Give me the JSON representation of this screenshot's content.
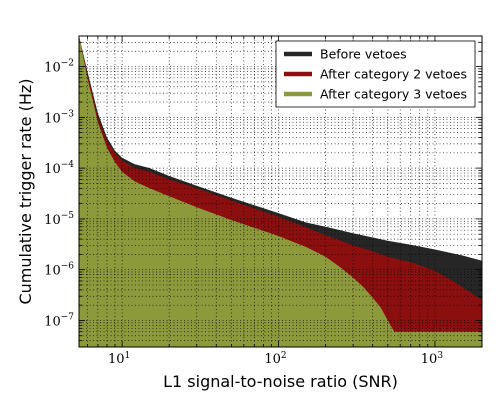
{
  "chart_data": {
    "type": "area",
    "xlabel": "L1 signal-to-noise ratio (SNR)",
    "ylabel": "Cumulative trigger rate (Hz)",
    "xscale": "log",
    "yscale": "log",
    "xlim": [
      5.3,
      2000
    ],
    "ylim": [
      3e-08,
      0.04
    ],
    "x_ticks": [
      {
        "value": 10,
        "label": "10",
        "exp": "1"
      },
      {
        "value": 100,
        "label": "10",
        "exp": "2"
      },
      {
        "value": 1000,
        "label": "10",
        "exp": "3"
      }
    ],
    "y_ticks": [
      {
        "value": 1e-07,
        "label": "10",
        "exp": "−7"
      },
      {
        "value": 1e-06,
        "label": "10",
        "exp": "−6"
      },
      {
        "value": 1e-05,
        "label": "10",
        "exp": "−5"
      },
      {
        "value": 0.0001,
        "label": "10",
        "exp": "−4"
      },
      {
        "value": 0.001,
        "label": "10",
        "exp": "−3"
      },
      {
        "value": 0.01,
        "label": "10",
        "exp": "−2"
      }
    ],
    "grid": true,
    "legend_position": "top-right",
    "series": [
      {
        "name": "Before vetoes",
        "color": "#262626",
        "points": [
          [
            5.3,
            0.04
          ],
          [
            6,
            0.008
          ],
          [
            7,
            0.0012
          ],
          [
            8,
            0.0004
          ],
          [
            9,
            0.00022
          ],
          [
            10,
            0.00016
          ],
          [
            12,
            0.00012
          ],
          [
            15,
            0.0001
          ],
          [
            20,
            7e-05
          ],
          [
            30,
            4.5e-05
          ],
          [
            50,
            2.6e-05
          ],
          [
            100,
            1.3e-05
          ],
          [
            150,
            8.5e-06
          ],
          [
            200,
            7e-06
          ],
          [
            300,
            5.2e-06
          ],
          [
            500,
            3.7e-06
          ],
          [
            700,
            3.1e-06
          ],
          [
            1000,
            2.5e-06
          ],
          [
            1500,
            1.9e-06
          ],
          [
            2000,
            1.5e-06
          ]
        ]
      },
      {
        "name": "After category 2 vetoes",
        "color": "#8c0f0f",
        "points": [
          [
            5.3,
            0.04
          ],
          [
            6,
            0.007
          ],
          [
            7,
            0.001
          ],
          [
            8,
            0.00035
          ],
          [
            9,
            0.0002
          ],
          [
            10,
            0.00014
          ],
          [
            12,
            0.0001
          ],
          [
            15,
            8.5e-05
          ],
          [
            20,
            6e-05
          ],
          [
            30,
            4e-05
          ],
          [
            50,
            2.3e-05
          ],
          [
            100,
            1.1e-05
          ],
          [
            150,
            6.8e-06
          ],
          [
            200,
            4.8e-06
          ],
          [
            300,
            3e-06
          ],
          [
            400,
            2.3e-06
          ],
          [
            500,
            1.8e-06
          ],
          [
            700,
            1.4e-06
          ],
          [
            1000,
            9.5e-07
          ],
          [
            1300,
            6e-07
          ],
          [
            1700,
            3.5e-07
          ],
          [
            2000,
            2.5e-07
          ]
        ]
      },
      {
        "name": "After category 3 vetoes",
        "color": "#8c9a3c",
        "points": [
          [
            5.3,
            0.04
          ],
          [
            6,
            0.006
          ],
          [
            7,
            0.0008
          ],
          [
            8,
            0.00025
          ],
          [
            9,
            0.00013
          ],
          [
            10,
            8.5e-05
          ],
          [
            12,
            5.5e-05
          ],
          [
            15,
            4e-05
          ],
          [
            20,
            2.8e-05
          ],
          [
            30,
            1.7e-05
          ],
          [
            50,
            9.5e-06
          ],
          [
            100,
            4.6e-06
          ],
          [
            150,
            2.8e-06
          ],
          [
            200,
            1.8e-06
          ],
          [
            250,
            1.1e-06
          ],
          [
            300,
            7e-07
          ],
          [
            350,
            4.5e-07
          ],
          [
            400,
            2.8e-07
          ],
          [
            450,
            1.8e-07
          ],
          [
            500,
            1e-07
          ],
          [
            550,
            6e-08
          ],
          [
            2000,
            6e-08
          ]
        ]
      }
    ]
  }
}
